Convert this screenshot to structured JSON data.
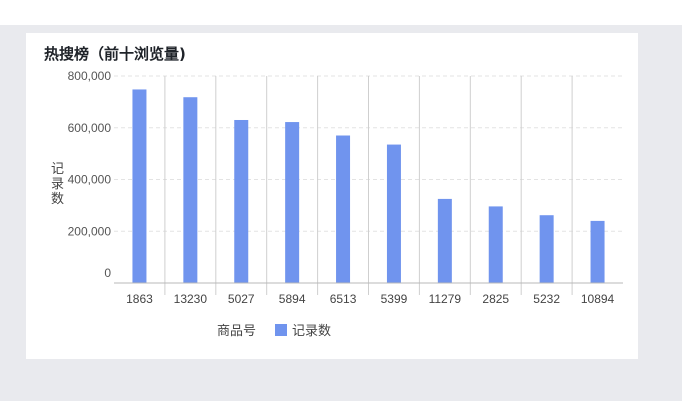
{
  "card": {
    "title": "热搜榜（前十浏览量)"
  },
  "chart_data": {
    "type": "bar",
    "xlabel": "商品号",
    "ylabel": "记录数",
    "ylim": [
      0,
      800000
    ],
    "yticks": [
      0,
      200000,
      400000,
      600000,
      800000
    ],
    "ytick_labels": [
      "0",
      "200,000",
      "400,000",
      "600,000",
      "800,000"
    ],
    "categories": [
      "1863",
      "13230",
      "5027",
      "5894",
      "6513",
      "5399",
      "11279",
      "2825",
      "5232",
      "10894"
    ],
    "series": [
      {
        "name": "记录数",
        "color": "#7094ee",
        "values": [
          748000,
          718000,
          630000,
          622000,
          570000,
          535000,
          325000,
          296000,
          262000,
          240000
        ]
      }
    ],
    "legend_position": "bottom",
    "grid": true
  }
}
